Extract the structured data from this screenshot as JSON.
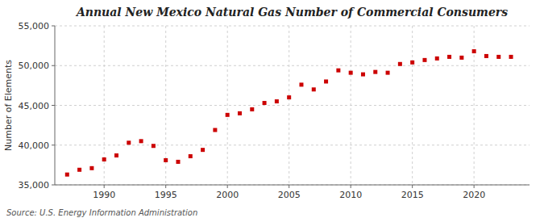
{
  "chart_data": {
    "type": "scatter",
    "title": "Annual New Mexico Natural Gas Number of Commercial Consumers",
    "ylabel": "Number of Elements",
    "source": "Source: U.S. Energy Information Administration",
    "color": "#cc0000",
    "marker": "square",
    "grid": true,
    "x": [
      1987,
      1988,
      1989,
      1990,
      1991,
      1992,
      1993,
      1994,
      1995,
      1996,
      1997,
      1998,
      1999,
      2000,
      2001,
      2002,
      2003,
      2004,
      2005,
      2006,
      2007,
      2008,
      2009,
      2010,
      2011,
      2012,
      2013,
      2014,
      2015,
      2016,
      2017,
      2018,
      2019,
      2020,
      2021,
      2022,
      2023
    ],
    "values": [
      36300,
      36900,
      37100,
      38200,
      38700,
      40300,
      40500,
      39900,
      38100,
      37900,
      38600,
      39400,
      41900,
      43800,
      44000,
      44500,
      45300,
      45500,
      46000,
      47600,
      47000,
      48000,
      49400,
      49100,
      48900,
      49200,
      49100,
      50200,
      50400,
      50700,
      50900,
      51100,
      51000,
      51800,
      51200,
      51100,
      51100
    ],
    "xlim": [
      1986,
      2024.5
    ],
    "ylim": [
      35000,
      55000
    ],
    "xticks": [
      1990,
      1995,
      2000,
      2005,
      2010,
      2015,
      2020
    ],
    "yticks": [
      {
        "value": 35000,
        "label": "35,000"
      },
      {
        "value": 40000,
        "label": "40,000"
      },
      {
        "value": 45000,
        "label": "45,000"
      },
      {
        "value": 50000,
        "label": "50,000"
      },
      {
        "value": 55000,
        "label": "55,000"
      }
    ]
  }
}
